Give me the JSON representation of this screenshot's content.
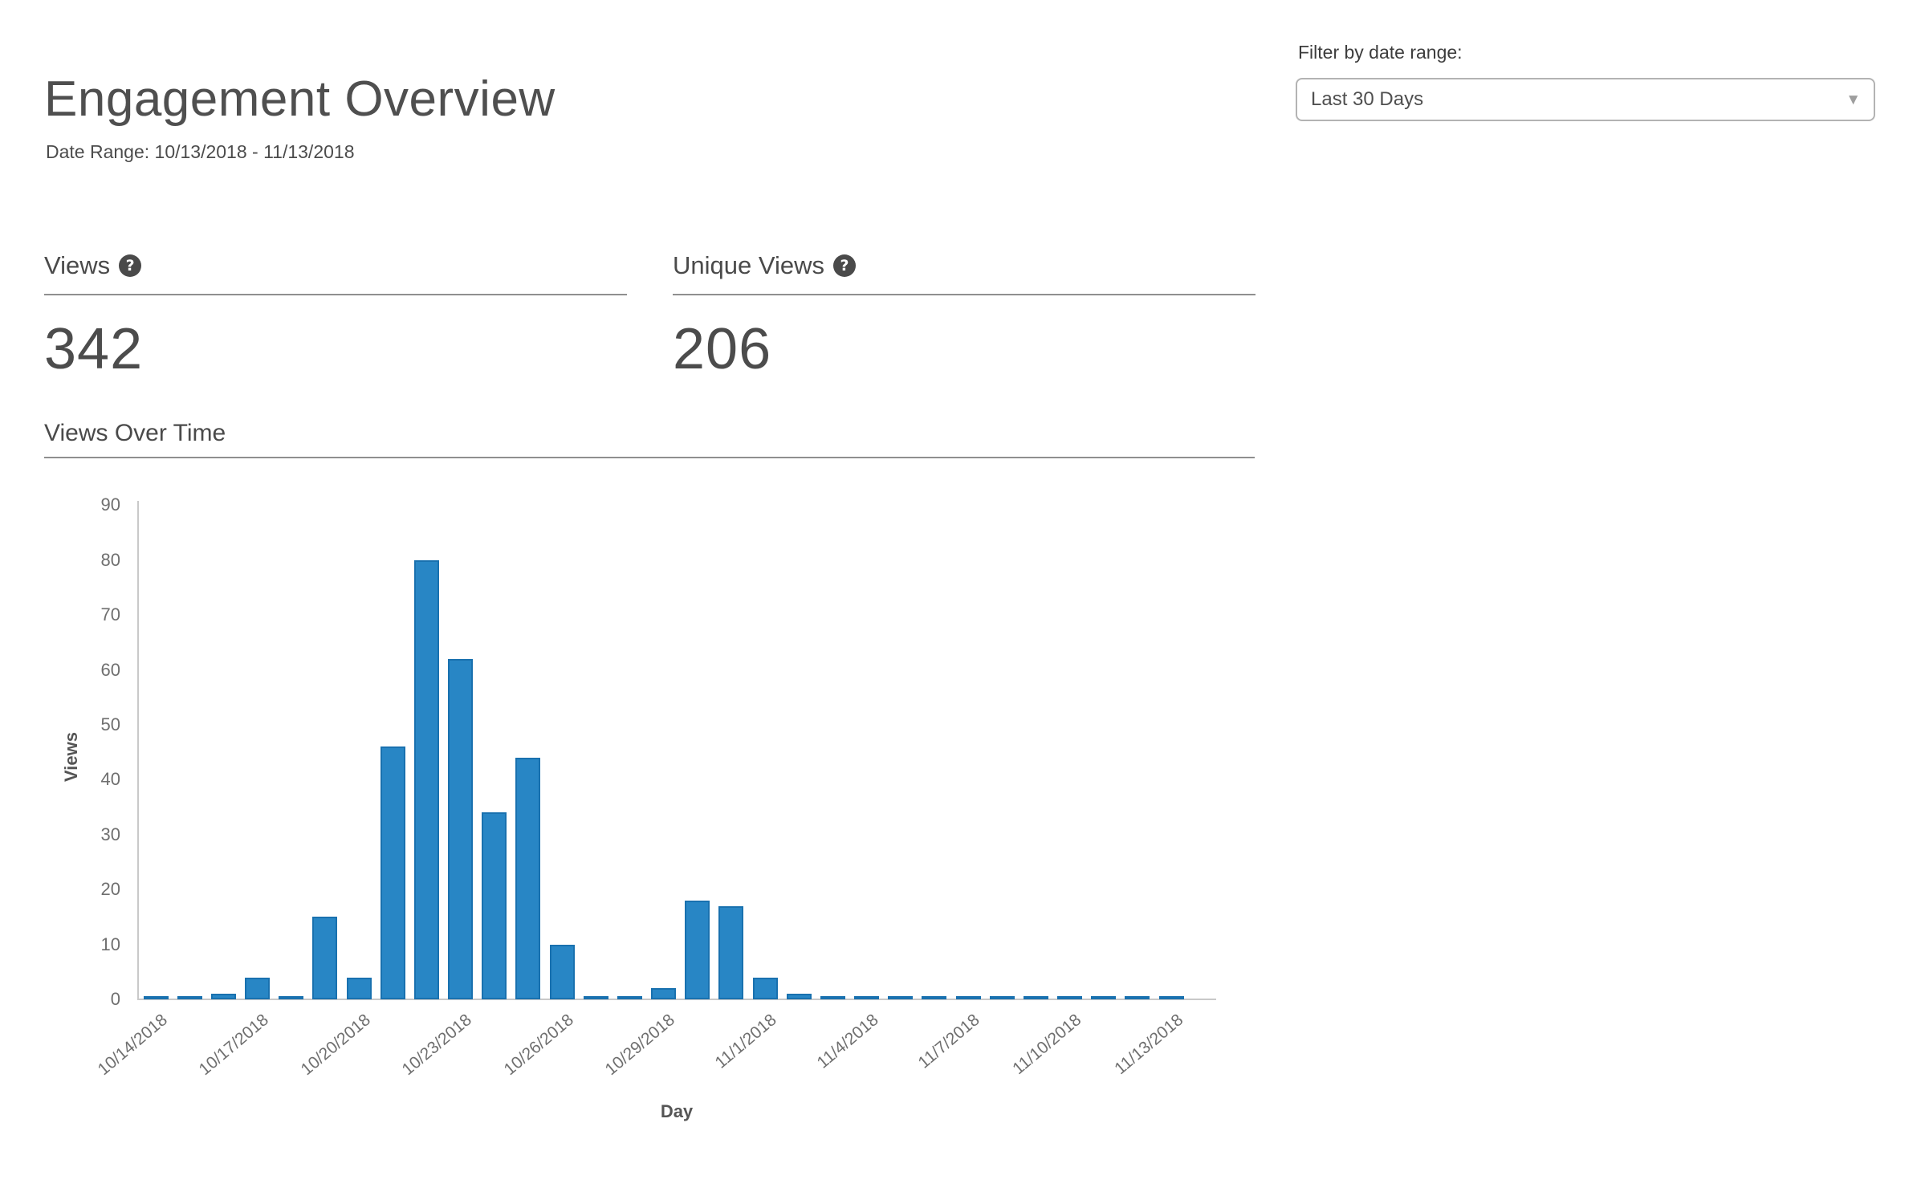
{
  "header": {
    "title": "Engagement Overview",
    "date_range": "Date Range: 10/13/2018 - 11/13/2018"
  },
  "filter": {
    "label": "Filter by date range:",
    "selected_option": "Last 30 Days"
  },
  "icons": {
    "help": "?",
    "dropdown_arrow": "▼"
  },
  "metrics": {
    "views": {
      "label": "Views",
      "value": "342"
    },
    "unique_views": {
      "label": "Unique Views",
      "value": "206"
    }
  },
  "section": {
    "title": "Views Over Time"
  },
  "chart_data": {
    "type": "bar",
    "title": "Views Over Time",
    "xlabel": "Day",
    "ylabel": "Views",
    "ylim": [
      0,
      90
    ],
    "y_ticks": [
      0,
      10,
      20,
      30,
      40,
      50,
      60,
      70,
      80,
      90
    ],
    "grid": "off",
    "legend": "off",
    "bar_color": "#2886c5",
    "bar_border_color": "#1971af",
    "axis_color": "#c9c9c9",
    "x_tick_every": 3,
    "x_tick_labels": [
      "10/14/2018",
      "10/17/2018",
      "10/20/2018",
      "10/23/2018",
      "10/26/2018",
      "10/29/2018",
      "11/1/2018",
      "11/4/2018",
      "11/7/2018",
      "11/10/2018",
      "11/13/2018"
    ],
    "categories": [
      "10/14/2018",
      "10/15/2018",
      "10/16/2018",
      "10/17/2018",
      "10/18/2018",
      "10/19/2018",
      "10/20/2018",
      "10/21/2018",
      "10/22/2018",
      "10/23/2018",
      "10/24/2018",
      "10/25/2018",
      "10/26/2018",
      "10/27/2018",
      "10/28/2018",
      "10/29/2018",
      "10/30/2018",
      "10/31/2018",
      "11/1/2018",
      "11/2/2018",
      "11/3/2018",
      "11/4/2018",
      "11/5/2018",
      "11/6/2018",
      "11/7/2018",
      "11/8/2018",
      "11/9/2018",
      "11/10/2018",
      "11/11/2018",
      "11/12/2018",
      "11/13/2018"
    ],
    "values": [
      0,
      0,
      1,
      4,
      0,
      15,
      4,
      46,
      80,
      62,
      34,
      44,
      10,
      0,
      0,
      2,
      18,
      17,
      4,
      1,
      0,
      0,
      0,
      0,
      0,
      0,
      0,
      0,
      0,
      0,
      0
    ]
  }
}
